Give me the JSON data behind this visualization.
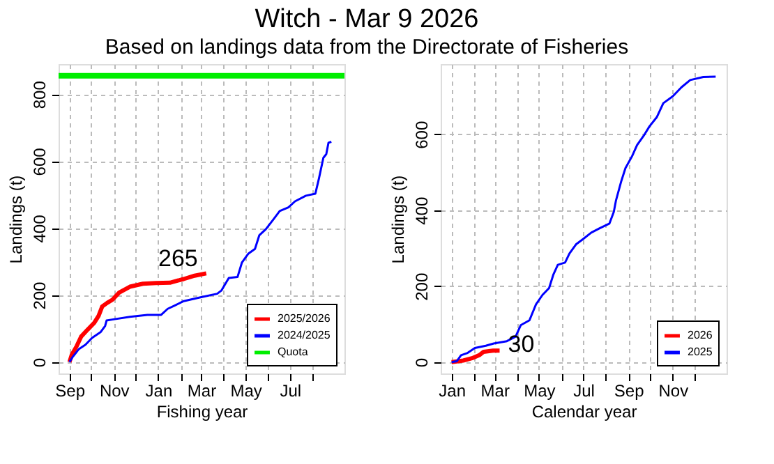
{
  "chart_data": [
    {
      "type": "line",
      "title": "Witch - Mar  9 2026",
      "subtitle": "Based on landings data from the Directorate of Fisheries",
      "xlabel": "Fishing year",
      "ylabel": "Landings (t)",
      "xlim": [
        "2025-08-17",
        "2026-09-14"
      ],
      "xticks": [
        {
          "value": "2025-09-01",
          "label": "Sep"
        },
        {
          "value": "2025-10-01",
          "label": null
        },
        {
          "value": "2025-11-01",
          "label": "Nov"
        },
        {
          "value": "2025-12-01",
          "label": null
        },
        {
          "value": "2026-01-01",
          "label": "Jan"
        },
        {
          "value": "2026-02-01",
          "label": null
        },
        {
          "value": "2026-03-01",
          "label": "Mar"
        },
        {
          "value": "2026-04-01",
          "label": null
        },
        {
          "value": "2026-05-01",
          "label": "May"
        },
        {
          "value": "2026-06-01",
          "label": null
        },
        {
          "value": "2026-07-01",
          "label": "Jul"
        },
        {
          "value": "2026-08-01",
          "label": null
        }
      ],
      "ylim": [
        -34,
        890
      ],
      "yticks": [
        0,
        200,
        400,
        600,
        800
      ],
      "grid": true,
      "legend": "bottom right",
      "series": [
        {
          "name": "2025/2026",
          "color": "#ff0000",
          "x": [
            "2025-09-01",
            "2025-09-04",
            "2025-09-11",
            "2025-09-17",
            "2025-09-26",
            "2025-10-05",
            "2025-10-11",
            "2025-10-16",
            "2025-10-23",
            "2025-10-30",
            "2025-11-08",
            "2025-11-23",
            "2025-12-11",
            "2025-12-29",
            "2026-01-17",
            "2026-02-05",
            "2026-02-20",
            "2026-03-08"
          ],
          "values": [
            0,
            21,
            48,
            76,
            97,
            117,
            138,
            166,
            177,
            186,
            207,
            225,
            234,
            236,
            237,
            248,
            258,
            265
          ]
        },
        {
          "name": "2024/2025",
          "color": "#0000ff",
          "x": [
            "2025-09-01",
            "2025-09-05",
            "2025-09-14",
            "2025-09-23",
            "2025-10-02",
            "2025-10-14",
            "2025-10-20",
            "2025-10-22",
            "2025-10-30",
            "2025-11-23",
            "2025-12-17",
            "2026-01-05",
            "2026-01-14",
            "2026-01-23",
            "2026-02-05",
            "2026-02-27",
            "2026-03-23",
            "2026-03-29",
            "2026-04-08",
            "2026-04-20",
            "2026-04-26",
            "2026-05-05",
            "2026-05-14",
            "2026-05-20",
            "2026-05-29",
            "2026-06-08",
            "2026-06-17",
            "2026-06-29",
            "2026-07-08",
            "2026-07-23",
            "2026-08-05",
            "2026-08-10",
            "2026-08-16",
            "2026-08-20",
            "2026-08-23",
            "2026-08-27"
          ],
          "values": [
            0,
            14,
            39,
            52,
            72,
            90,
            108,
            124,
            127,
            135,
            141,
            141,
            159,
            168,
            182,
            193,
            204,
            214,
            251,
            254,
            297,
            324,
            338,
            379,
            397,
            425,
            451,
            462,
            480,
            497,
            503,
            549,
            610,
            621,
            655,
            658
          ]
        }
      ],
      "ref_lines": [
        {
          "axis": "y",
          "value": 855,
          "label": "Quota",
          "color": "#00ee00"
        }
      ],
      "annotations": [
        {
          "text": "265",
          "x": "2026-03-08",
          "y": 265
        }
      ]
    },
    {
      "type": "line",
      "xlabel": "Calendar year",
      "ylabel": "Landings (t)",
      "xlim": [
        "2024-12-17",
        "2026-01-14"
      ],
      "xticks": [
        {
          "value": "2025-01-01",
          "label": "Jan"
        },
        {
          "value": "2025-02-01",
          "label": null
        },
        {
          "value": "2025-03-01",
          "label": "Mar"
        },
        {
          "value": "2025-04-01",
          "label": null
        },
        {
          "value": "2025-05-01",
          "label": "May"
        },
        {
          "value": "2025-06-01",
          "label": null
        },
        {
          "value": "2025-07-01",
          "label": "Jul"
        },
        {
          "value": "2025-08-01",
          "label": null
        },
        {
          "value": "2025-09-01",
          "label": "Sep"
        },
        {
          "value": "2025-10-01",
          "label": null
        },
        {
          "value": "2025-11-01",
          "label": "Nov"
        },
        {
          "value": "2025-12-01",
          "label": null
        }
      ],
      "ylim": [
        -30,
        785
      ],
      "yticks": [
        0,
        200,
        400,
        600
      ],
      "grid": true,
      "legend": "bottom right",
      "series": [
        {
          "name": "2026",
          "color": "#ff0000",
          "x": [
            "2025-01-01",
            "2025-01-17",
            "2025-01-29",
            "2025-02-08",
            "2025-02-14",
            "2025-02-27",
            "2025-03-08"
          ],
          "values": [
            0,
            4,
            10,
            18,
            27,
            30,
            30
          ]
        },
        {
          "name": "2025",
          "color": "#0000ff",
          "x": [
            "2025-01-01",
            "2025-01-08",
            "2025-01-14",
            "2025-01-23",
            "2025-02-02",
            "2025-02-17",
            "2025-02-28",
            "2025-03-18",
            "2025-03-30",
            "2025-04-06",
            "2025-04-18",
            "2025-04-27",
            "2025-05-06",
            "2025-05-15",
            "2025-05-21",
            "2025-05-27",
            "2025-06-06",
            "2025-06-12",
            "2025-06-21",
            "2025-06-30",
            "2025-07-12",
            "2025-07-24",
            "2025-08-06",
            "2025-08-12",
            "2025-08-15",
            "2025-08-22",
            "2025-08-28",
            "2025-09-06",
            "2025-09-13",
            "2025-09-22",
            "2025-09-30",
            "2025-10-10",
            "2025-10-19",
            "2025-11-01",
            "2025-11-13",
            "2025-11-25",
            "2025-12-13",
            "2025-12-30"
          ],
          "values": [
            0,
            2,
            18,
            24,
            37,
            43,
            49,
            55,
            67,
            97,
            110,
            152,
            177,
            195,
            231,
            256,
            262,
            286,
            310,
            323,
            341,
            353,
            365,
            396,
            426,
            475,
            511,
            542,
            572,
            596,
            621,
            645,
            682,
            700,
            724,
            743,
            751,
            752
          ]
        }
      ],
      "annotations": [
        {
          "text": "30",
          "x": "2025-03-08",
          "y": 30
        }
      ]
    }
  ]
}
